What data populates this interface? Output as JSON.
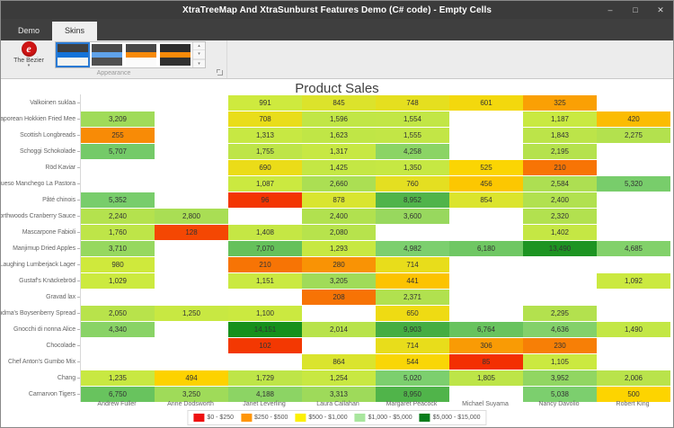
{
  "window": {
    "title": "XtraTreeMap And XtraSunburst Features Demo (C# code) - Empty Cells",
    "controls": {
      "minimize": "–",
      "maximize": "□",
      "close": "✕"
    }
  },
  "ribbon": {
    "tabs": [
      {
        "label": "Demo",
        "active": false
      },
      {
        "label": "Skins",
        "active": true
      }
    ],
    "skin_button": {
      "label": "The Bezier",
      "icon_glyph": "e",
      "caret": "▾",
      "icon_color": "#cf1414"
    },
    "group_label": "Appearance",
    "gallery": {
      "items": [
        {
          "name": "skin-preview-blue-selected",
          "selected": true,
          "stripes": [
            "#3f3f3f",
            "#1473d8",
            "#f4f4f2"
          ]
        },
        {
          "name": "skin-preview-blue-dark",
          "selected": false,
          "stripes": [
            "#4a4a4a",
            "#5fa2ea",
            "#4f4f4f"
          ]
        },
        {
          "name": "skin-preview-orange-light",
          "selected": false,
          "stripes": [
            "#474747",
            "#f78a09",
            "#fbfbfb"
          ]
        },
        {
          "name": "skin-preview-orange-dark",
          "selected": false,
          "stripes": [
            "#2d2d2d",
            "#f78a09",
            "#303030"
          ]
        }
      ],
      "buttons": [
        {
          "name": "gallery-scroll-up-icon",
          "glyph": "▴"
        },
        {
          "name": "gallery-scroll-down-icon",
          "glyph": "▾"
        },
        {
          "name": "gallery-dropdown-icon",
          "glyph": "▾"
        }
      ]
    }
  },
  "chart_data": {
    "type": "heatmap",
    "title": "Product Sales",
    "columns": [
      "Andrew Fuller",
      "Anne Dodsworth",
      "Janet Leverling",
      "Laura Callahan",
      "Margaret Peacock",
      "Michael Suyama",
      "Nancy Davolio",
      "Robert King"
    ],
    "rows": [
      "Valkoinen suklaa",
      "Singaporean Hokkien Fried Mee",
      "Scottish Longbreads",
      "Schoggi Schokolade",
      "Röd Kaviar",
      "Queso Manchego La Pastora",
      "Pâté chinois",
      "Northwoods Cranberry Sauce",
      "Mascarpone Fabioli",
      "Manjimup Dried Apples",
      "Laughing Lumberjack Lager",
      "Gustaf's Knäckebröd",
      "Gravad lax",
      "Grandma's Boysenberry Spread",
      "Gnocchi di nonna Alice",
      "Chocolade",
      "Chef Anton's Gumbo Mix",
      "Chang",
      "Carnarvon Tigers"
    ],
    "values": [
      [
        null,
        null,
        991,
        845,
        748,
        601,
        325,
        null
      ],
      [
        3209,
        null,
        708,
        1596,
        1554,
        null,
        1187,
        420
      ],
      [
        255,
        null,
        1313,
        1623,
        1555,
        null,
        1843,
        2275
      ],
      [
        5707,
        null,
        1755,
        1317,
        4258,
        null,
        2195,
        null
      ],
      [
        null,
        null,
        690,
        1425,
        1350,
        525,
        210,
        null
      ],
      [
        null,
        null,
        1087,
        2660,
        760,
        456,
        2584,
        5320
      ],
      [
        5352,
        null,
        96,
        878,
        8952,
        854,
        2400,
        null
      ],
      [
        2240,
        2800,
        null,
        2400,
        3600,
        null,
        2320,
        null
      ],
      [
        1760,
        128,
        1408,
        2080,
        null,
        null,
        1402,
        null
      ],
      [
        3710,
        null,
        7070,
        1293,
        4982,
        6180,
        13490,
        4685
      ],
      [
        980,
        null,
        210,
        280,
        714,
        null,
        null,
        null
      ],
      [
        1029,
        null,
        1151,
        3205,
        441,
        null,
        null,
        1092
      ],
      [
        null,
        null,
        null,
        208,
        2371,
        null,
        null,
        null
      ],
      [
        2050,
        1250,
        1100,
        null,
        650,
        null,
        2295,
        null
      ],
      [
        4340,
        null,
        14151,
        2014,
        9903,
        6764,
        4636,
        1490
      ],
      [
        null,
        null,
        102,
        null,
        714,
        306,
        230,
        null
      ],
      [
        null,
        null,
        null,
        864,
        544,
        85,
        1105,
        null
      ],
      [
        1235,
        494,
        1729,
        1254,
        5020,
        1805,
        3952,
        2006
      ],
      [
        6750,
        3250,
        4188,
        3313,
        8950,
        null,
        5038,
        500
      ]
    ],
    "color_stops": [
      [
        0,
        "#f00000"
      ],
      [
        250,
        "#f88a06"
      ],
      [
        500,
        "#fdd400"
      ],
      [
        1000,
        "#cdea3f"
      ],
      [
        5000,
        "#7ccf6e"
      ],
      [
        15000,
        "#0c8a14"
      ]
    ],
    "legend": [
      {
        "label": "$0 - $250",
        "color": "#ee1010"
      },
      {
        "label": "$250 - $500",
        "color": "#ff9608"
      },
      {
        "label": "$500 - $1,000",
        "color": "#fcf003"
      },
      {
        "label": "$1,000 - $5,000",
        "color": "#a9e69e"
      },
      {
        "label": "$5,000 - $15,000",
        "color": "#097d1c"
      }
    ],
    "legend_position": "bottom-center",
    "grid": false
  }
}
